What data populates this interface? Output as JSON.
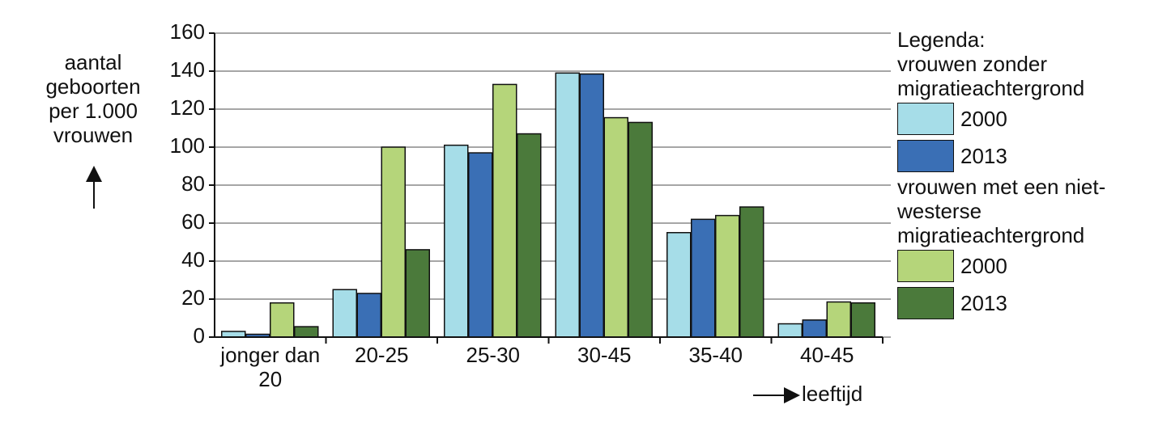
{
  "chart_data": {
    "type": "bar",
    "y_label": "aantal geboorten per 1.000 vrouwen",
    "x_label": "leeftijd",
    "categories": [
      "jonger dan 20",
      "20-25",
      "25-30",
      "30-45",
      "35-40",
      "40-45"
    ],
    "ylim": [
      0,
      160
    ],
    "yticks": [
      0,
      20,
      40,
      60,
      80,
      100,
      120,
      140,
      160
    ],
    "grid": true,
    "legend_title": "Legenda:",
    "series_groups": [
      {
        "name": "vrouwen zonder migratieachtergrond",
        "series": [
          {
            "name": "2000",
            "color": "#a6dde8",
            "values": [
              3,
              25,
              101,
              139,
              55,
              7
            ]
          },
          {
            "name": "2013",
            "color": "#3a6fb5",
            "values": [
              1.5,
              23,
              97,
              138.5,
              62,
              9
            ]
          }
        ]
      },
      {
        "name": "vrouwen met een niet-westerse migratieachtergrond",
        "series": [
          {
            "name": "2000",
            "color": "#b5d57a",
            "values": [
              18,
              100,
              133,
              115.5,
              64,
              18.5
            ]
          },
          {
            "name": "2013",
            "color": "#4b7a3b",
            "values": [
              5.5,
              46,
              107,
              113,
              68.5,
              18
            ]
          }
        ]
      }
    ]
  }
}
